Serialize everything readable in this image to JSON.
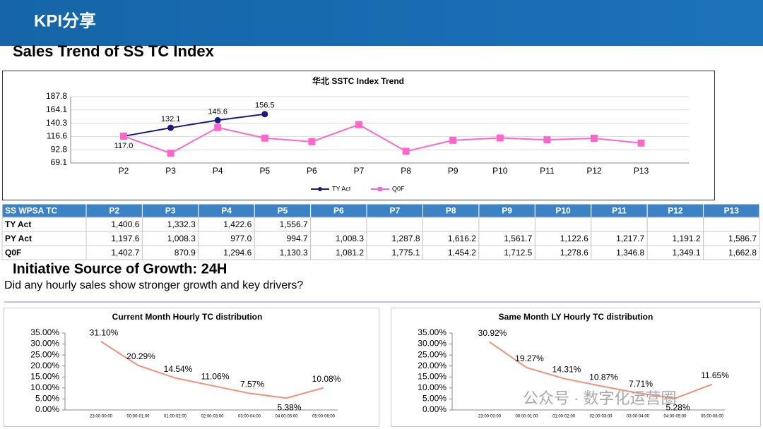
{
  "header": {
    "title": "KPI分享"
  },
  "section1": {
    "title": "Sales Trend of SS TC Index"
  },
  "section2": {
    "title": "Initiative Source of Growth: 24H",
    "subtitle": "Did any hourly sales show stronger growth and key drivers?"
  },
  "watermark": "公众号 · 数字化运营圈",
  "chart_data": [
    {
      "type": "line",
      "title": "华北 SSTC Index Trend",
      "categories": [
        "P2",
        "P3",
        "P4",
        "P5",
        "P6",
        "P7",
        "P8",
        "P9",
        "P10",
        "P11",
        "P12",
        "P13"
      ],
      "ylim": [
        69.1,
        187.8
      ],
      "yticks": [
        69.1,
        92.8,
        116.6,
        140.3,
        164.1,
        187.8
      ],
      "grid": true,
      "legend": "bottom",
      "series": [
        {
          "name": "TY Act",
          "color": "#1a1a80",
          "marker": "circle",
          "values": [
            117.0,
            132.1,
            145.6,
            156.5,
            null,
            null,
            null,
            null,
            null,
            null,
            null,
            null
          ],
          "value_labels": [
            "117.0",
            "132.1",
            "145.6",
            "156.5",
            null,
            null,
            null,
            null,
            null,
            null,
            null,
            null
          ]
        },
        {
          "name": "Q0F",
          "color": "#ff66cc",
          "marker": "square",
          "values": [
            117.1,
            86.4,
            132.5,
            113.6,
            107.2,
            137.8,
            90.0,
            109.7,
            113.9,
            110.6,
            113.3,
            104.8
          ]
        }
      ]
    },
    {
      "type": "line",
      "title": "Current Month Hourly TC distribution",
      "categories": [
        "23:00-00:00",
        "00:00-01:00",
        "01:00-02:00",
        "02:00-03:00",
        "03:00-04:00",
        "04:00-05:00",
        "05:00-06:00"
      ],
      "ylim": [
        0,
        35
      ],
      "yticks": [
        {
          "value": 0,
          "label": "0.00%"
        },
        {
          "value": 5,
          "label": "5.00%"
        },
        {
          "value": 10,
          "label": "10.00%"
        },
        {
          "value": 15,
          "label": "15.00%"
        },
        {
          "value": 20,
          "label": "20.00%"
        },
        {
          "value": 25,
          "label": "25.00%"
        },
        {
          "value": 30,
          "label": "30.00%"
        },
        {
          "value": 35,
          "label": "35.00%"
        }
      ],
      "grid": false,
      "series": [
        {
          "color": "#f4907a",
          "values": [
            31.1,
            20.29,
            14.54,
            11.06,
            7.57,
            5.38,
            10.08
          ],
          "value_labels": [
            "31.10%",
            "20.29%",
            "14.54%",
            "11.06%",
            "7.57%",
            "5.38%",
            "10.08%"
          ]
        }
      ]
    },
    {
      "type": "line",
      "title": "Same Month LY Hourly TC distribution",
      "categories": [
        "23:00-00:00",
        "00:00-01:00",
        "01:00-02:00",
        "02:00-03:00",
        "03:00-04:00",
        "04:00-05:00",
        "05:00-06:00"
      ],
      "ylim": [
        0,
        35
      ],
      "yticks": [
        {
          "value": 0,
          "label": "0.00%"
        },
        {
          "value": 5,
          "label": "5.00%"
        },
        {
          "value": 10,
          "label": "10.00%"
        },
        {
          "value": 15,
          "label": "15.00%"
        },
        {
          "value": 20,
          "label": "20.00%"
        },
        {
          "value": 25,
          "label": "25.00%"
        },
        {
          "value": 30,
          "label": "30.00%"
        },
        {
          "value": 35,
          "label": "35.00%"
        }
      ],
      "grid": false,
      "series": [
        {
          "color": "#f4907a",
          "values": [
            30.92,
            19.27,
            14.31,
            10.87,
            7.71,
            5.28,
            11.65
          ],
          "value_labels": [
            "30.92%",
            "19.27%",
            "14.31%",
            "10.87%",
            "7.71%",
            "5.28%",
            "11.65%"
          ]
        }
      ]
    }
  ],
  "table": {
    "columns": [
      "SS WPSA TC",
      "P2",
      "P3",
      "P4",
      "P5",
      "P6",
      "P7",
      "P8",
      "P9",
      "P10",
      "P11",
      "P12",
      "P13"
    ],
    "rows": [
      {
        "label": "TY Act",
        "values": [
          "1,400.6",
          "1,332.3",
          "1,422.6",
          "1,556.7",
          null,
          null,
          null,
          null,
          null,
          null,
          null,
          null
        ]
      },
      {
        "label": "PY Act",
        "values": [
          "1,197.6",
          "1,008.3",
          "977.0",
          "994.7",
          "1,008.3",
          "1,287.8",
          "1,616.2",
          "1,561.7",
          "1,122.6",
          "1,217.7",
          "1,191.2",
          "1,586.7"
        ]
      },
      {
        "label": "Q0F",
        "values": [
          "1,402.7",
          "870.9",
          "1,294.6",
          "1,130.3",
          "1,081.2",
          "1,775.1",
          "1,454.2",
          "1,712.5",
          "1,278.6",
          "1,346.8",
          "1,349.1",
          "1,662.8"
        ]
      }
    ]
  }
}
